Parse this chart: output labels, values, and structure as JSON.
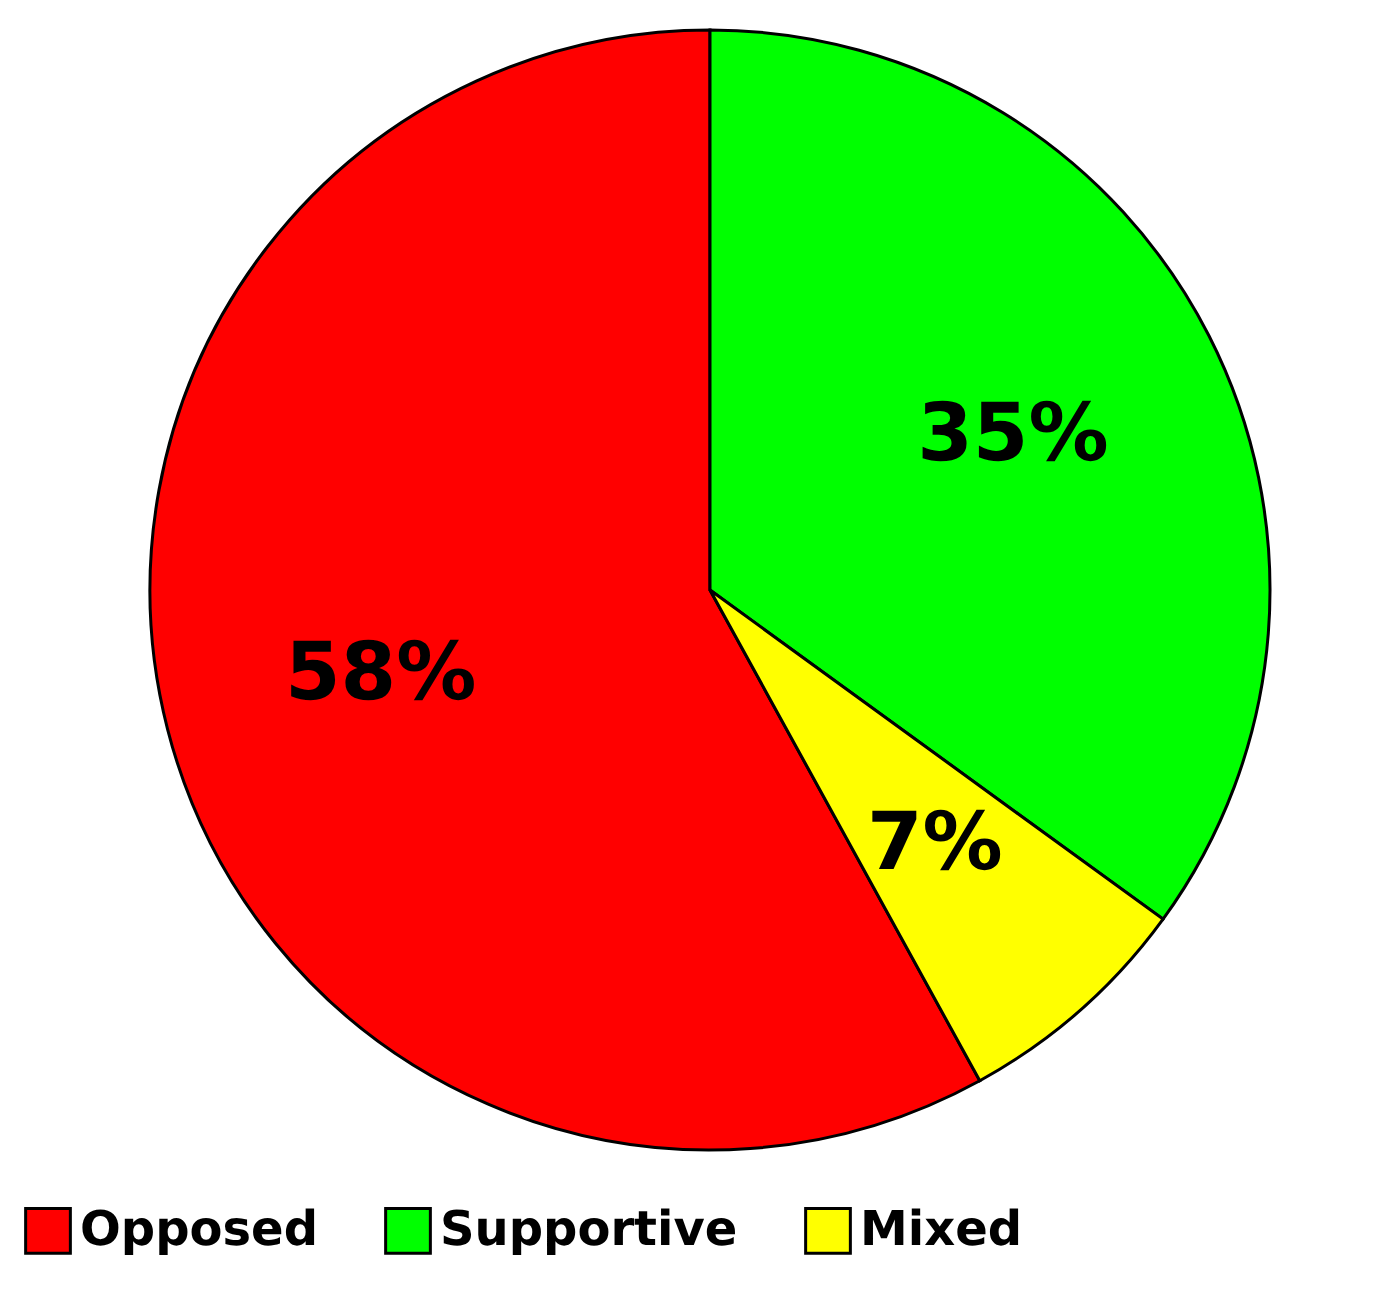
{
  "chart_data": {
    "type": "pie",
    "categories": [
      "Opposed",
      "Supportive",
      "Mixed"
    ],
    "values": [
      58,
      35,
      7
    ],
    "colors": [
      "#ff0000",
      "#00ff00",
      "#ffff00"
    ],
    "value_labels": [
      "58%",
      "35%",
      "7%"
    ],
    "legend": "bottom"
  }
}
